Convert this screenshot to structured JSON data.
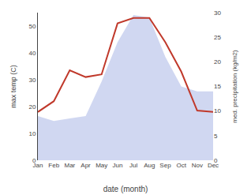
{
  "chart_data": {
    "type": "line",
    "categories": [
      "Jan",
      "Feb",
      "Mar",
      "Apr",
      "May",
      "Jun",
      "Jul",
      "Aug",
      "Sep",
      "Oct",
      "Nov",
      "Dec"
    ],
    "series": [
      {
        "type": "area",
        "axis": "y2",
        "color": "#b0bce8",
        "values": [
          9.0,
          8.0,
          8.5,
          9.0,
          16.0,
          24.0,
          29.5,
          29.0,
          21.0,
          15.0,
          14.0,
          14.0
        ]
      },
      {
        "type": "line",
        "color": "#c0392b",
        "values": [
          18.0,
          22.0,
          33.5,
          31.0,
          32.0,
          51.0,
          53.0,
          53.0,
          44.0,
          33.0,
          18.5,
          18.0
        ]
      }
    ],
    "xlabel": "date (month)",
    "ylabel": "max temp (C)",
    "y2label": "med. precipitation (kg/m2)",
    "ylim": [
      0,
      55
    ],
    "yticks": [
      0,
      10,
      20,
      30,
      40,
      50
    ],
    "y2lim": [
      0,
      30
    ],
    "y2ticks": [
      0,
      5,
      10,
      15,
      20,
      25,
      30
    ],
    "grid": false
  }
}
